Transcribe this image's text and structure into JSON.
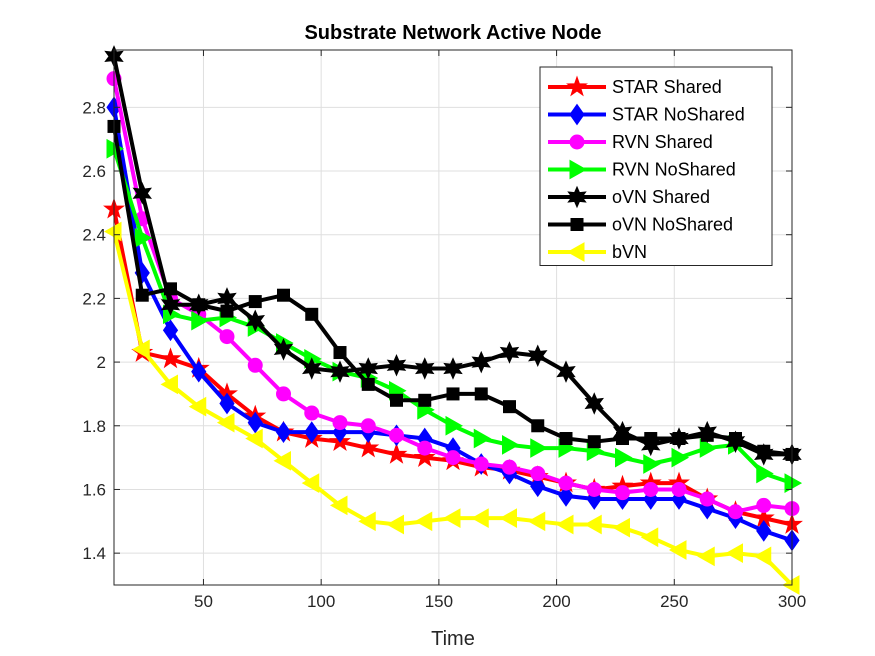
{
  "chart_data": {
    "type": "line",
    "title": "Substrate Network Active Node",
    "xlabel": "Time",
    "ylabel": "",
    "xlim": [
      12,
      300
    ],
    "ylim": [
      1.3,
      2.98
    ],
    "xticks": [
      50,
      100,
      150,
      200,
      250,
      300
    ],
    "yticks": [
      1.4,
      1.6,
      1.8,
      2.0,
      2.2,
      2.4,
      2.6,
      2.8
    ],
    "ytick_labels": [
      "1.4",
      "1.6",
      "1.8",
      "2",
      "2.2",
      "2.4",
      "2.6",
      "2.8"
    ],
    "grid": true,
    "legend_position": "top-right",
    "x": [
      12,
      24,
      36,
      48,
      60,
      72,
      84,
      96,
      108,
      120,
      132,
      144,
      156,
      168,
      180,
      192,
      204,
      216,
      228,
      240,
      252,
      264,
      276,
      288,
      300
    ],
    "series": [
      {
        "name": "STAR Shared",
        "color": "#ff0000",
        "marker": "star",
        "values": [
          2.48,
          2.03,
          2.01,
          1.98,
          1.9,
          1.83,
          1.78,
          1.76,
          1.75,
          1.73,
          1.71,
          1.7,
          1.69,
          1.67,
          1.66,
          1.64,
          1.62,
          1.6,
          1.61,
          1.62,
          1.62,
          1.57,
          1.53,
          1.51,
          1.49
        ]
      },
      {
        "name": "STAR NoShared",
        "color": "#0000ff",
        "marker": "diamond",
        "values": [
          2.8,
          2.28,
          2.1,
          1.97,
          1.87,
          1.81,
          1.78,
          1.78,
          1.78,
          1.78,
          1.77,
          1.76,
          1.73,
          1.68,
          1.65,
          1.61,
          1.58,
          1.57,
          1.57,
          1.57,
          1.57,
          1.54,
          1.51,
          1.47,
          1.44
        ]
      },
      {
        "name": "RVN Shared",
        "color": "#ff00ff",
        "marker": "circle",
        "values": [
          2.89,
          2.45,
          2.2,
          2.15,
          2.08,
          1.99,
          1.9,
          1.84,
          1.81,
          1.8,
          1.77,
          1.73,
          1.7,
          1.68,
          1.67,
          1.65,
          1.62,
          1.6,
          1.59,
          1.6,
          1.6,
          1.57,
          1.53,
          1.55,
          1.54
        ]
      },
      {
        "name": "RVN NoShared",
        "color": "#00ff00",
        "marker": "triangle-right",
        "values": [
          2.67,
          2.39,
          2.15,
          2.13,
          2.14,
          2.11,
          2.06,
          2.01,
          1.97,
          1.95,
          1.91,
          1.85,
          1.8,
          1.76,
          1.74,
          1.73,
          1.73,
          1.72,
          1.7,
          1.68,
          1.7,
          1.73,
          1.74,
          1.65,
          1.62
        ]
      },
      {
        "name": "oVN Shared",
        "color": "#000000",
        "marker": "hexagram",
        "values": [
          2.96,
          2.53,
          2.18,
          2.18,
          2.2,
          2.13,
          2.04,
          1.98,
          1.97,
          1.98,
          1.99,
          1.98,
          1.98,
          2.0,
          2.03,
          2.02,
          1.97,
          1.87,
          1.78,
          1.74,
          1.76,
          1.78,
          1.75,
          1.71,
          1.71
        ]
      },
      {
        "name": "oVN NoShared",
        "color": "#000000",
        "marker": "square",
        "values": [
          2.74,
          2.21,
          2.23,
          2.18,
          2.16,
          2.19,
          2.21,
          2.15,
          2.03,
          1.93,
          1.88,
          1.88,
          1.9,
          1.9,
          1.86,
          1.8,
          1.76,
          1.75,
          1.76,
          1.76,
          1.76,
          1.77,
          1.76,
          1.72,
          1.71
        ]
      },
      {
        "name": "bVN",
        "color": "#ffff00",
        "marker": "triangle-left",
        "values": [
          2.41,
          2.04,
          1.93,
          1.86,
          1.81,
          1.76,
          1.69,
          1.62,
          1.55,
          1.5,
          1.49,
          1.5,
          1.51,
          1.51,
          1.51,
          1.5,
          1.49,
          1.49,
          1.48,
          1.45,
          1.41,
          1.39,
          1.4,
          1.39,
          1.3
        ]
      }
    ]
  }
}
